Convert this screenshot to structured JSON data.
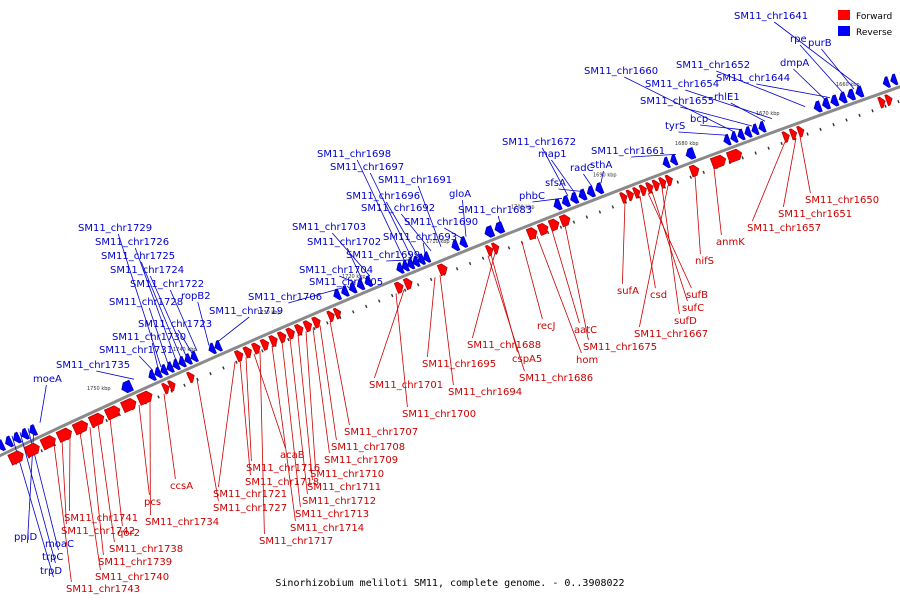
{
  "caption": "Sinorhizobium meliloti SM11, complete genome. - 0..3908022",
  "legend": {
    "forward_label": "Forward",
    "reverse_label": "Reverse",
    "forward_color": "#ff0000",
    "reverse_color": "#0000ff"
  },
  "colors": {
    "forward_label": "#cc0000",
    "reverse_label": "#0000cc",
    "backbone": "#888888"
  },
  "scale_labels": [
    "1750 kbp",
    "1740 kbp",
    "1730 kbp",
    "1720 kbp",
    "1710 kbp",
    "1700 kbp",
    "1690 kbp",
    "1680 kbp",
    "1670 kbp",
    "1660 kbp"
  ],
  "reverse_genes": [
    "SM11_chr1641",
    "purB",
    "rpe",
    "dmpA",
    "SM11_chr1644",
    "SM11_chr1652",
    "SM11_chr1654",
    "rhlE1",
    "SM11_chr1655",
    "bcp",
    "SM11_chr1660",
    "tyrS",
    "SM11_chr1661",
    "sthA",
    "radC",
    "sfsA",
    "map1",
    "SM11_chr1672",
    "phbC",
    "SM11_chr1683",
    "gloA",
    "SM11_chr1690",
    "SM11_chr1691",
    "SM11_chr1692",
    "SM11_chr1693",
    "SM11_chr1696",
    "SM11_chr1697",
    "SM11_chr1698",
    "SM11_chr1699",
    "SM11_chr1703",
    "SM11_chr1702",
    "SM11_chr1704",
    "SM11_chr1705",
    "SM11_chr1706",
    "SM11_chr1719",
    "ropB2",
    "SM11_chr1722",
    "SM11_chr1723",
    "SM11_chr1724",
    "SM11_chr1725",
    "SM11_chr1726",
    "SM11_chr1728",
    "SM11_chr1729",
    "SM11_chr1730",
    "SM11_chr1731",
    "SM11_chr1735",
    "moeA",
    "ppiD",
    "moaC",
    "trpC",
    "trpD"
  ],
  "forward_genes": [
    "SM11_chr1650",
    "SM11_chr1651",
    "SM11_chr1657",
    "anmK",
    "nifS",
    "sufA",
    "csd",
    "sufB",
    "sufC",
    "sufD",
    "SM11_chr1667",
    "SM11_chr1675",
    "aatC",
    "hom",
    "recJ",
    "SM11_chr1688",
    "cspA5",
    "SM11_chr1686",
    "SM11_chr1694",
    "SM11_chr1695",
    "SM11_chr1701",
    "SM11_chr1700",
    "SM11_chr1707",
    "SM11_chr1708",
    "SM11_chr1709",
    "SM11_chr1710",
    "SM11_chr1711",
    "SM11_chr1712",
    "SM11_chr1713",
    "SM11_chr1714",
    "SM11_chr1717",
    "acaB",
    "SM11_chr1716",
    "SM11_chr1718",
    "SM11_chr1721",
    "SM11_chr1727",
    "ccsA",
    "SM11_chr1734",
    "pcs",
    "qor2",
    "SM11_chr1738",
    "SM11_chr1739",
    "SM11_chr1740",
    "SM11_chr1741",
    "SM11_chr1742",
    "SM11_chr1743"
  ]
}
